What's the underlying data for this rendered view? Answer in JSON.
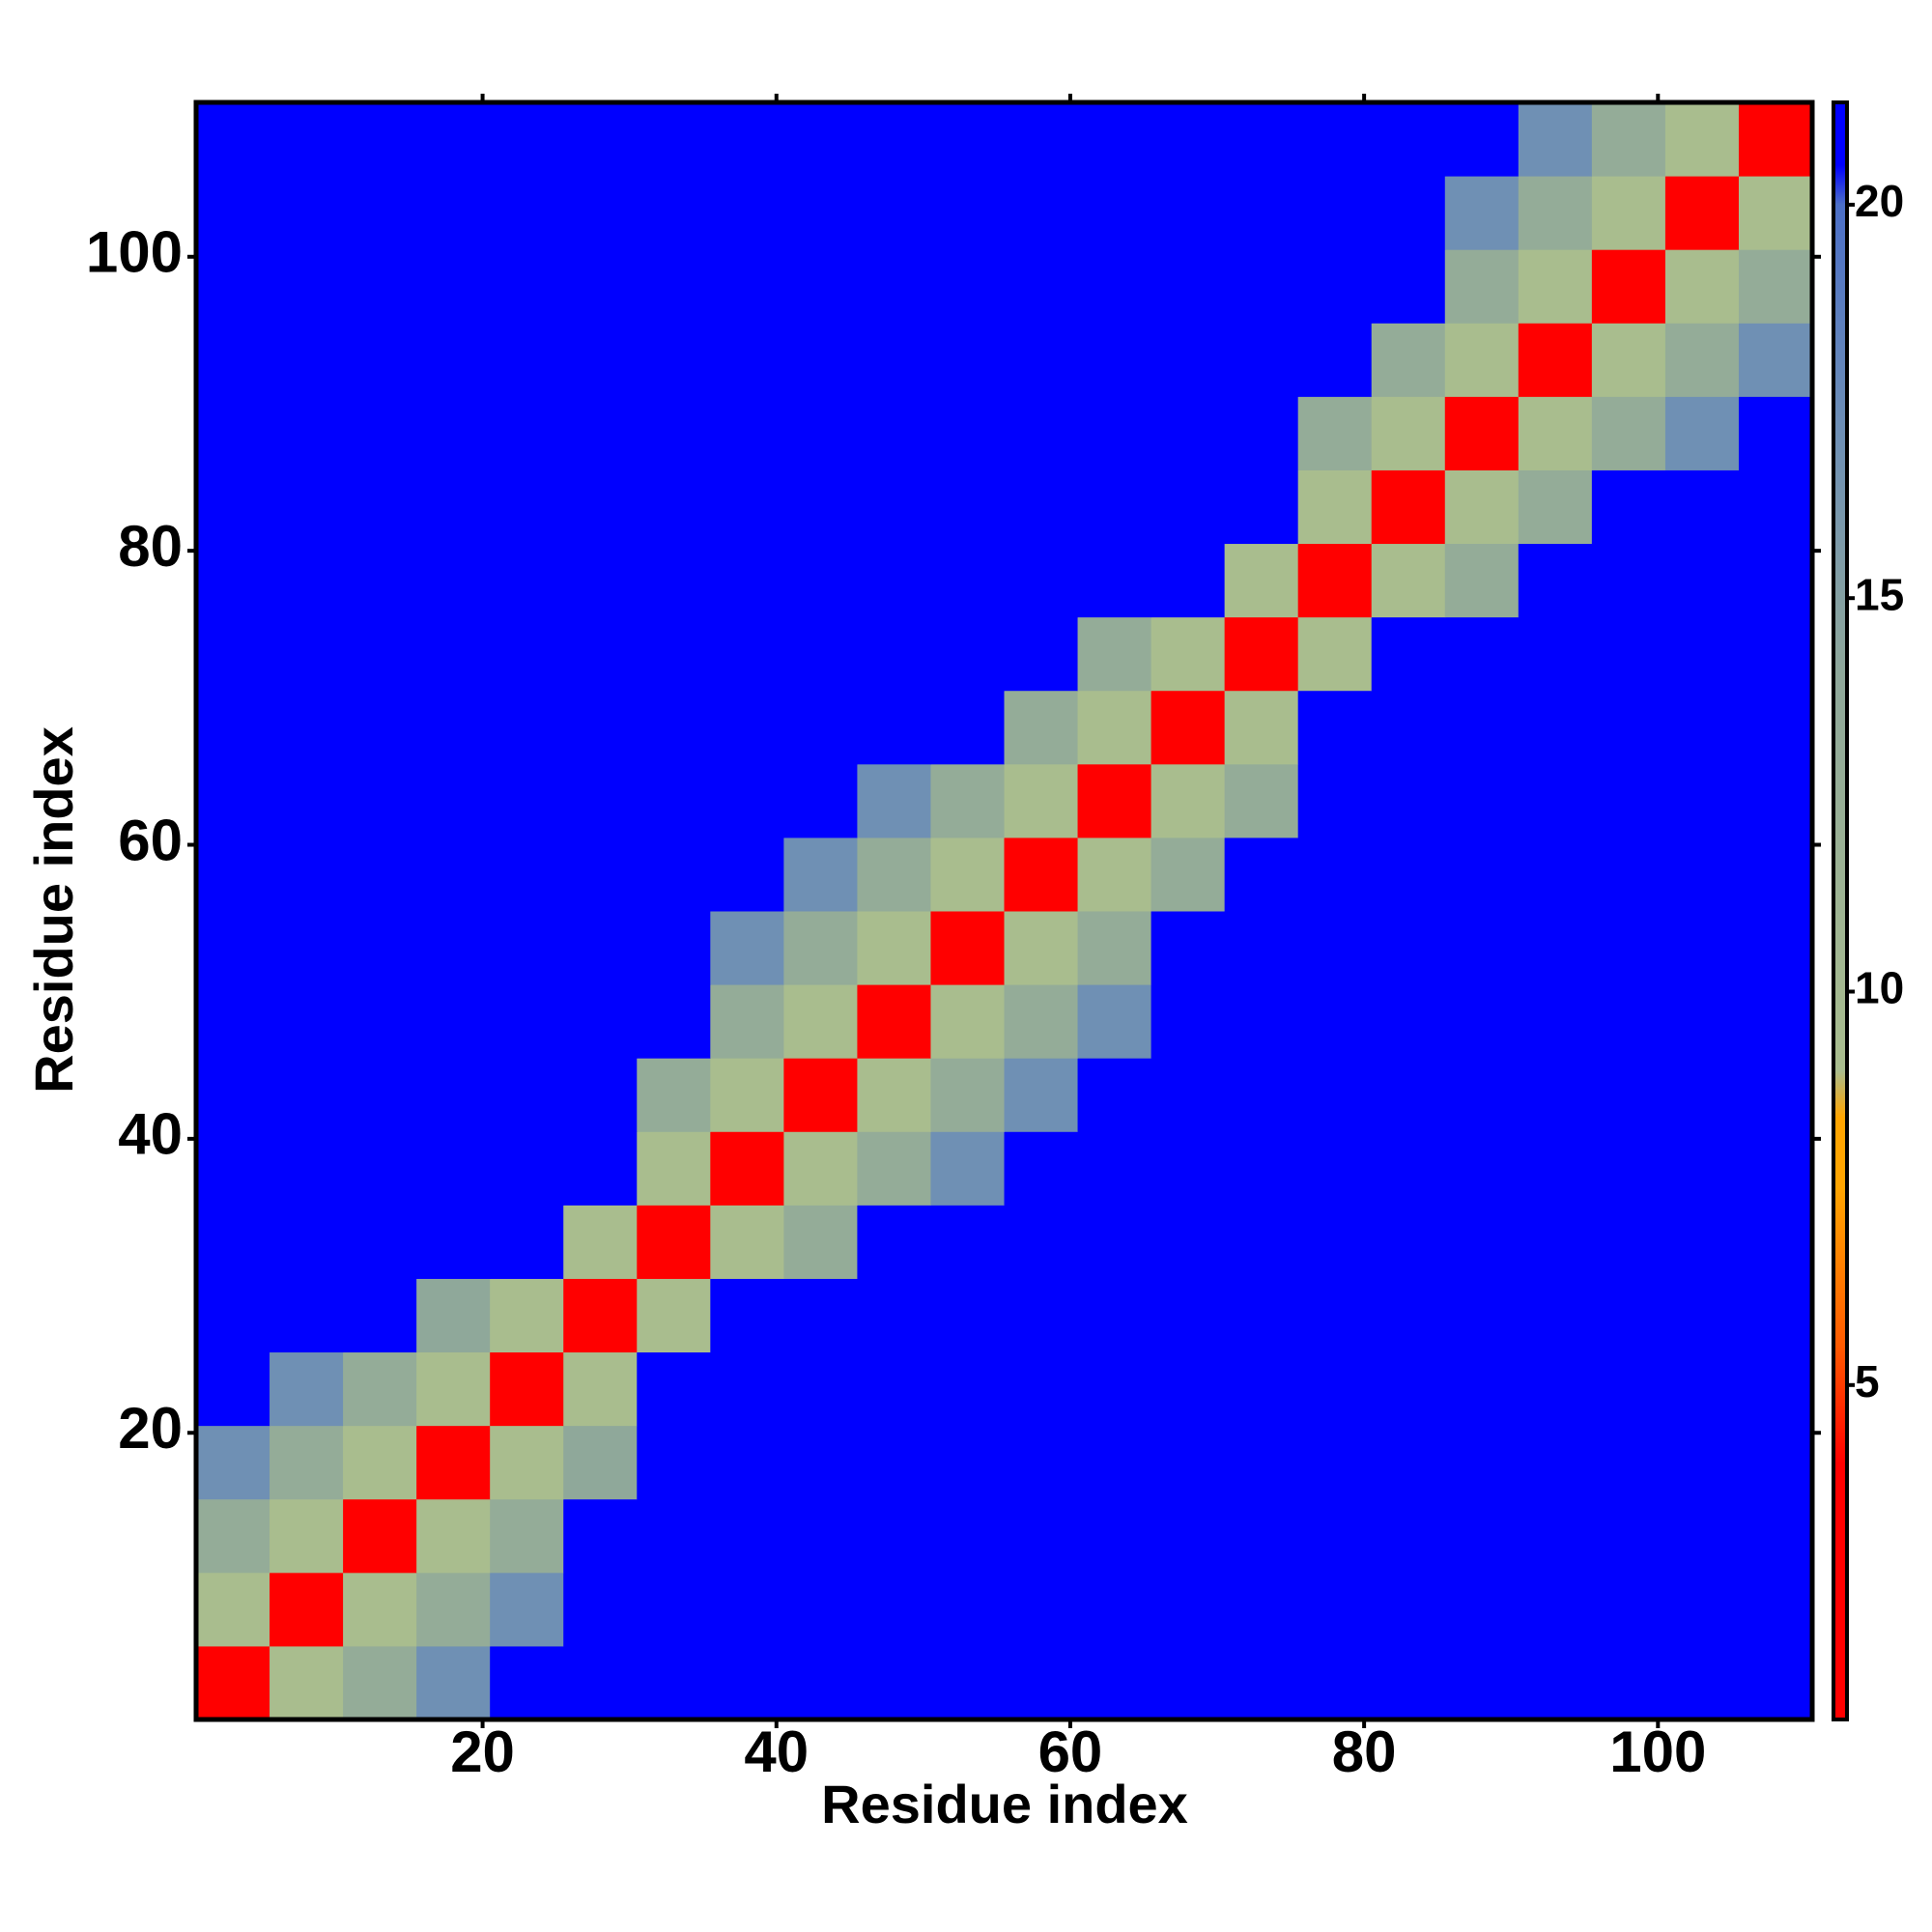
{
  "chart_data": {
    "type": "heatmap",
    "xlabel": "Residue index",
    "ylabel": "Residue index",
    "xbins": [
      0.5,
      5.5,
      10.5,
      15.5,
      20.5,
      25.5,
      30.5,
      35.5,
      40.5,
      45.5,
      50.5,
      55.5,
      60.5,
      65.5,
      70.5,
      75.5,
      80.5,
      85.5,
      90.5,
      95.5,
      100.5,
      105.5,
      110.5
    ],
    "ybins": [
      0.5,
      5.5,
      10.5,
      15.5,
      20.5,
      25.5,
      30.5,
      35.5,
      40.5,
      45.5,
      50.5,
      55.5,
      60.5,
      65.5,
      70.5,
      75.5,
      80.5,
      85.5,
      90.5,
      95.5,
      100.5,
      105.5,
      110.5
    ],
    "z": [
      [
        4,
        9,
        13,
        17,
        21,
        21,
        21,
        21,
        21,
        21,
        21,
        21,
        21,
        21,
        21,
        21,
        21,
        21,
        21,
        21,
        21,
        21
      ],
      [
        9,
        4,
        9,
        13,
        17,
        21,
        21,
        21,
        21,
        21,
        21,
        21,
        21,
        21,
        21,
        21,
        21,
        21,
        21,
        21,
        21,
        21
      ],
      [
        13,
        9,
        4,
        9,
        13,
        21,
        21,
        21,
        21,
        21,
        21,
        21,
        21,
        21,
        21,
        21,
        21,
        21,
        21,
        21,
        21,
        21
      ],
      [
        17,
        13,
        9,
        4,
        9,
        14,
        21,
        21,
        21,
        21,
        21,
        21,
        21,
        21,
        21,
        21,
        21,
        21,
        21,
        21,
        21,
        21
      ],
      [
        21,
        17,
        13,
        9,
        4,
        9,
        21,
        21,
        21,
        21,
        21,
        21,
        21,
        21,
        21,
        21,
        21,
        21,
        21,
        21,
        21,
        21
      ],
      [
        21,
        21,
        21,
        14,
        9,
        4,
        9,
        21,
        21,
        21,
        21,
        21,
        21,
        21,
        21,
        21,
        21,
        21,
        21,
        21,
        21,
        21
      ],
      [
        21,
        21,
        21,
        21,
        21,
        9,
        4,
        9,
        13,
        21,
        21,
        21,
        21,
        21,
        21,
        21,
        21,
        21,
        21,
        21,
        21,
        21
      ],
      [
        21,
        21,
        21,
        21,
        21,
        21,
        9,
        4,
        9,
        13,
        17,
        21,
        21,
        21,
        21,
        21,
        21,
        21,
        21,
        21,
        21,
        21
      ],
      [
        21,
        21,
        21,
        21,
        21,
        21,
        13,
        9,
        4,
        9,
        13,
        17,
        21,
        21,
        21,
        21,
        21,
        21,
        21,
        21,
        21,
        21
      ],
      [
        21,
        21,
        21,
        21,
        21,
        21,
        21,
        13,
        9,
        4,
        9,
        13,
        17,
        21,
        21,
        21,
        21,
        21,
        21,
        21,
        21,
        21
      ],
      [
        21,
        21,
        21,
        21,
        21,
        21,
        21,
        17,
        13,
        9,
        4,
        9,
        13,
        21,
        21,
        21,
        21,
        21,
        21,
        21,
        21,
        21
      ],
      [
        21,
        21,
        21,
        21,
        21,
        21,
        21,
        21,
        17,
        13,
        9,
        4,
        9,
        13,
        21,
        21,
        21,
        21,
        21,
        21,
        21,
        21
      ],
      [
        21,
        21,
        21,
        21,
        21,
        21,
        21,
        21,
        21,
        17,
        13,
        9,
        4,
        9,
        13,
        21,
        21,
        21,
        21,
        21,
        21,
        21
      ],
      [
        21,
        21,
        21,
        21,
        21,
        21,
        21,
        21,
        21,
        21,
        21,
        13,
        9,
        4,
        9,
        21,
        21,
        21,
        21,
        21,
        21,
        21
      ],
      [
        21,
        21,
        21,
        21,
        21,
        21,
        21,
        21,
        21,
        21,
        21,
        21,
        13,
        9,
        4,
        9,
        21,
        21,
        21,
        21,
        21,
        21
      ],
      [
        21,
        21,
        21,
        21,
        21,
        21,
        21,
        21,
        21,
        21,
        21,
        21,
        21,
        21,
        9,
        4,
        9,
        13,
        21,
        21,
        21,
        21
      ],
      [
        21,
        21,
        21,
        21,
        21,
        21,
        21,
        21,
        21,
        21,
        21,
        21,
        21,
        21,
        21,
        9,
        4,
        9,
        13,
        21,
        21,
        21
      ],
      [
        21,
        21,
        21,
        21,
        21,
        21,
        21,
        21,
        21,
        21,
        21,
        21,
        21,
        21,
        21,
        13,
        9,
        4,
        9,
        13,
        17,
        21
      ],
      [
        21,
        21,
        21,
        21,
        21,
        21,
        21,
        21,
        21,
        21,
        21,
        21,
        21,
        21,
        21,
        21,
        13,
        9,
        4,
        9,
        13,
        17
      ],
      [
        21,
        21,
        21,
        21,
        21,
        21,
        21,
        21,
        21,
        21,
        21,
        21,
        21,
        21,
        21,
        21,
        21,
        13,
        9,
        4,
        9,
        13
      ],
      [
        21,
        21,
        21,
        21,
        21,
        21,
        21,
        21,
        21,
        21,
        21,
        21,
        21,
        21,
        21,
        21,
        21,
        17,
        13,
        9,
        4,
        9
      ],
      [
        21,
        21,
        21,
        21,
        21,
        21,
        21,
        21,
        21,
        21,
        21,
        21,
        21,
        21,
        21,
        21,
        21,
        21,
        17,
        13,
        9,
        4
      ]
    ],
    "xlim": [
      0.5,
      110.5
    ],
    "ylim": [
      0.5,
      110.5
    ],
    "xticks": [
      20,
      40,
      60,
      80,
      100
    ],
    "yticks": [
      20,
      40,
      60,
      80,
      100
    ],
    "zlim": [
      0.75,
      21.3
    ],
    "zticks": [
      5,
      10,
      15,
      20
    ],
    "colorscale": [
      {
        "value": 0.75,
        "color": "#ff0000"
      },
      {
        "value": 4,
        "color": "#ff0000"
      },
      {
        "value": 5.5,
        "color": "#ff5a00"
      },
      {
        "value": 7.5,
        "color": "#ffa500"
      },
      {
        "value": 8.4,
        "color": "#ffa500"
      },
      {
        "value": 9,
        "color": "#a9bd8e"
      },
      {
        "value": 14,
        "color": "#8fa89a"
      },
      {
        "value": 17,
        "color": "#6f90b4"
      },
      {
        "value": 20,
        "color": "#4c6fc7"
      },
      {
        "value": 20.5,
        "color": "#0000ff"
      },
      {
        "value": 21.3,
        "color": "#0000ff"
      }
    ]
  }
}
